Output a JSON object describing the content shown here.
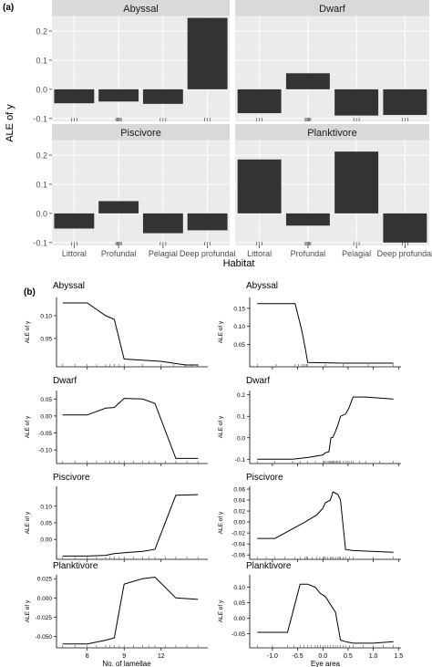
{
  "panels": {
    "a_label": "(a)",
    "b_label": "(b)"
  },
  "chart_data": [
    {
      "type": "bar",
      "panel": "a",
      "ylabel": "ALE of y",
      "xlabel": "Habitat",
      "categories": [
        "Littoral",
        "Profundal",
        "Pelagial",
        "Deep profundal"
      ],
      "ylim": [
        -0.11,
        0.25
      ],
      "yticks": [
        -0.1,
        0.0,
        0.1,
        0.2
      ],
      "ytick_labels": [
        "-0.1",
        "0.0",
        "0.1",
        "0.2"
      ],
      "grid": true,
      "facets": [
        {
          "title": "Abyssal",
          "values": [
            -0.048,
            -0.042,
            -0.05,
            0.245
          ]
        },
        {
          "title": "Dwarf",
          "values": [
            -0.082,
            0.055,
            -0.09,
            -0.088
          ]
        },
        {
          "title": "Piscivore",
          "values": [
            -0.052,
            0.042,
            -0.068,
            -0.058
          ]
        },
        {
          "title": "Planktivore",
          "values": [
            0.185,
            -0.042,
            0.212,
            -0.1
          ]
        }
      ]
    },
    {
      "type": "line",
      "panel": "b",
      "xlabel": "No. of lamellae",
      "ylabel": "ALE of y",
      "xlim": [
        3.5,
        15.8
      ],
      "xticks": [
        6,
        9,
        12
      ],
      "xtick_labels": [
        "6",
        "9",
        "12"
      ],
      "facets": [
        {
          "title": "Abyssal",
          "ylim": [
            -0.012,
            0.14
          ],
          "yticks": [
            0.1,
            0.05
          ],
          "ytick_labels": [
            "0.10",
            "0.05"
          ],
          "x": [
            4,
            6,
            7.5,
            8.2,
            9,
            12,
            14,
            15
          ],
          "y": [
            0.128,
            0.128,
            0.1,
            0.092,
            0.005,
            0.0,
            -0.008,
            -0.008
          ]
        },
        {
          "title": "Dwarf",
          "ylim": [
            -0.14,
            0.075
          ],
          "yticks": [
            0.05,
            0.0,
            -0.05,
            -0.1
          ],
          "ytick_labels": [
            "0.05",
            "0.00",
            "-0.05",
            "-0.10"
          ],
          "x": [
            4,
            6,
            7.5,
            8.2,
            9,
            10.5,
            11.5,
            13.2,
            15
          ],
          "y": [
            0.003,
            0.003,
            0.023,
            0.025,
            0.052,
            0.05,
            0.037,
            -0.125,
            -0.125
          ]
        },
        {
          "title": "Piscivore",
          "ylim": [
            -0.06,
            0.16
          ],
          "yticks": [
            0.1,
            0.05,
            0.0
          ],
          "ytick_labels": [
            "0.10",
            "0.05",
            "0.00"
          ],
          "x": [
            4,
            6,
            7.5,
            8.2,
            9,
            10.5,
            11.5,
            13.2,
            15
          ],
          "y": [
            -0.05,
            -0.05,
            -0.048,
            -0.043,
            -0.04,
            -0.036,
            -0.03,
            0.133,
            0.135
          ]
        },
        {
          "title": "Planktivore",
          "ylim": [
            -0.065,
            0.03
          ],
          "yticks": [
            0.025,
            0.0,
            -0.025,
            -0.05
          ],
          "ytick_labels": [
            "0.025",
            "0.000",
            "-0.025",
            "-0.050"
          ],
          "x": [
            4,
            6,
            7.5,
            8.2,
            9,
            10.5,
            11.5,
            13.2,
            15
          ],
          "y": [
            -0.06,
            -0.06,
            -0.055,
            -0.052,
            0.018,
            0.025,
            0.027,
            0.0,
            -0.002
          ]
        }
      ]
    },
    {
      "type": "line",
      "panel": "b",
      "xlabel": "Eye area",
      "ylabel": "ALE of y",
      "xlim": [
        -1.45,
        1.55
      ],
      "xticks": [
        -1.0,
        -0.5,
        0.0,
        0.5,
        1.0,
        1.5
      ],
      "xtick_labels": [
        "-1.0",
        "-0.5",
        "0.0",
        "0.5",
        "1.0",
        "1.5"
      ],
      "facets": [
        {
          "title": "Abyssal",
          "ylim": [
            -0.012,
            0.18
          ],
          "yticks": [
            0.15,
            0.1,
            0.05
          ],
          "ytick_labels": [
            "0.15",
            "0.10",
            "0.05"
          ],
          "x": [
            -1.3,
            -0.55,
            -0.42,
            -0.35,
            -0.3,
            0.4,
            1.4
          ],
          "y": [
            0.163,
            0.163,
            0.09,
            0.04,
            0.0,
            -0.002,
            -0.002
          ]
        },
        {
          "title": "Dwarf",
          "ylim": [
            -0.12,
            0.22
          ],
          "yticks": [
            0.2,
            0.1,
            0.0,
            -0.1
          ],
          "ytick_labels": [
            "0.2",
            "0.1",
            "0.0",
            "-0.1"
          ],
          "x": [
            -1.3,
            -0.6,
            -0.3,
            0.0,
            0.05,
            0.12,
            0.16,
            0.2,
            0.25,
            0.3,
            0.35,
            0.45,
            0.52,
            0.6,
            0.85,
            1.4
          ],
          "y": [
            -0.1,
            -0.1,
            -0.092,
            -0.08,
            -0.07,
            -0.065,
            0.0,
            0.002,
            0.03,
            0.06,
            0.1,
            0.11,
            0.14,
            0.19,
            0.19,
            0.18
          ]
        },
        {
          "title": "Piscivore",
          "ylim": [
            -0.068,
            0.065
          ],
          "yticks": [
            0.06,
            0.04,
            0.02,
            0.0,
            -0.02,
            -0.04,
            -0.06
          ],
          "ytick_labels": [
            "0.06",
            "0.04",
            "0.02",
            "0.00",
            "-0.02",
            "-0.04",
            "-0.06"
          ],
          "x": [
            -1.3,
            -0.95,
            -0.55,
            -0.35,
            -0.3,
            -0.12,
            0.0,
            0.05,
            0.15,
            0.2,
            0.3,
            0.35,
            0.45,
            0.6,
            1.4
          ],
          "y": [
            -0.03,
            -0.03,
            -0.01,
            0.0,
            0.003,
            0.013,
            0.025,
            0.035,
            0.04,
            0.055,
            0.05,
            0.04,
            -0.05,
            -0.052,
            -0.055
          ]
        },
        {
          "title": "Planktivore",
          "ylim": [
            -0.095,
            0.14
          ],
          "yticks": [
            0.1,
            0.05,
            0.0,
            -0.05
          ],
          "ytick_labels": [
            "0.10",
            "0.05",
            "0.00",
            "-0.05"
          ],
          "x": [
            -1.3,
            -0.7,
            -0.45,
            -0.3,
            -0.15,
            -0.05,
            0.05,
            0.15,
            0.25,
            0.35,
            0.45,
            0.6,
            1.0,
            1.4
          ],
          "y": [
            -0.045,
            -0.045,
            0.11,
            0.11,
            0.1,
            0.08,
            0.07,
            0.045,
            0.02,
            -0.07,
            -0.075,
            -0.08,
            -0.08,
            -0.075
          ]
        }
      ]
    }
  ]
}
